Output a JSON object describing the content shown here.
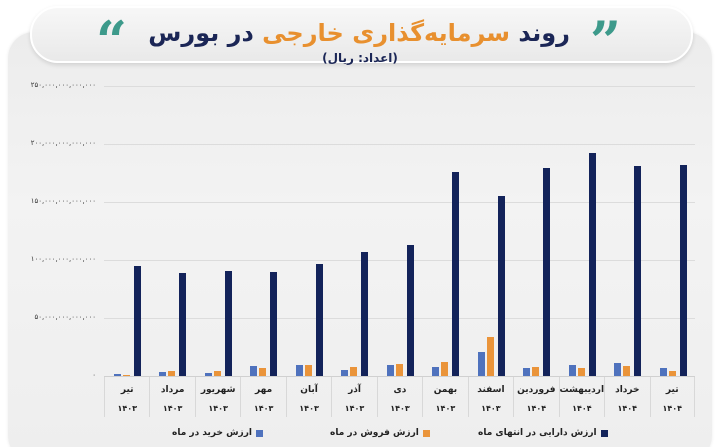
{
  "header": {
    "title_prefix": "روند",
    "title_accent": "سرمایه‌گذاری خارجی",
    "title_suffix": "در بورس",
    "subtitle": "(اعداد: ریال)",
    "quote_left": "“",
    "quote_right": "”",
    "colors": {
      "navy": "#1b2656",
      "accent": "#e8902f",
      "quote": "#3d9a8b"
    }
  },
  "axis": {
    "y_ticks": [
      {
        "label": "۲۵۰,۰۰۰,۰۰۰,۰۰۰,۰۰۰",
        "value": 250000000000000
      },
      {
        "label": "۲۰۰,۰۰۰,۰۰۰,۰۰۰,۰۰۰",
        "value": 200000000000000
      },
      {
        "label": "۱۵۰,۰۰۰,۰۰۰,۰۰۰,۰۰۰",
        "value": 150000000000000
      },
      {
        "label": "۱۰۰,۰۰۰,۰۰۰,۰۰۰,۰۰۰",
        "value": 100000000000000
      },
      {
        "label": "۵۰,۰۰۰,۰۰۰,۰۰۰,۰۰۰",
        "value": 50000000000000
      },
      {
        "label": "۰",
        "value": 0
      }
    ]
  },
  "categories": [
    {
      "month": "تیر",
      "year": "۱۴۰۳"
    },
    {
      "month": "مرداد",
      "year": "۱۴۰۳"
    },
    {
      "month": "شهریور",
      "year": "۱۴۰۳"
    },
    {
      "month": "مهر",
      "year": "۱۴۰۳"
    },
    {
      "month": "آبان",
      "year": "۱۴۰۳"
    },
    {
      "month": "آذر",
      "year": "۱۴۰۳"
    },
    {
      "month": "دی",
      "year": "۱۴۰۳"
    },
    {
      "month": "بهمن",
      "year": "۱۴۰۳"
    },
    {
      "month": "اسفند",
      "year": "۱۴۰۳"
    },
    {
      "month": "فروردین",
      "year": "۱۴۰۴"
    },
    {
      "month": "اردیبهشت",
      "year": "۱۴۰۴"
    },
    {
      "month": "خرداد",
      "year": "۱۴۰۴"
    },
    {
      "month": "تیر",
      "year": "۱۴۰۴"
    }
  ],
  "legend": {
    "buy": {
      "label": "ارزش خرید در ماه",
      "color": "#4f72bd"
    },
    "sell": {
      "label": "ارزش فروش در ماه",
      "color": "#ea943a"
    },
    "asset": {
      "label": "ارزش دارایی در انتهای ماه",
      "color": "#13235a"
    }
  },
  "chart_data": {
    "type": "bar",
    "title": "روند سرمایه‌گذاری خارجی در بورس",
    "subtitle": "(اعداد: ریال)",
    "xlabel": "",
    "ylabel": "ریال",
    "ylim": [
      0,
      250000000000000
    ],
    "grid": true,
    "legend_position": "bottom",
    "categories": [
      "تیر ۱۴۰۳",
      "مرداد ۱۴۰۳",
      "شهریور ۱۴۰۳",
      "مهر ۱۴۰۳",
      "آبان ۱۴۰۳",
      "آذر ۱۴۰۳",
      "دی ۱۴۰۳",
      "بهمن ۱۴۰۳",
      "اسفند ۱۴۰۳",
      "فروردین ۱۴۰۴",
      "اردیبهشت ۱۴۰۴",
      "خرداد ۱۴۰۴",
      "تیر ۱۴۰۴"
    ],
    "series": [
      {
        "name": "ارزش خرید در ماه",
        "color": "#4f72bd",
        "values": [
          1700000000000,
          3500000000000,
          2600000000000,
          8600000000000,
          9500000000000,
          5000000000000,
          9500000000000,
          8000000000000,
          20700000000000,
          6600000000000,
          9500000000000,
          11200000000000,
          6600000000000
        ]
      },
      {
        "name": "ارزش فروش در ماه",
        "color": "#ea943a",
        "values": [
          1000000000000,
          4000000000000,
          4300000000000,
          6900000000000,
          9500000000000,
          7800000000000,
          10600000000000,
          12000000000000,
          34000000000000,
          8000000000000,
          6900000000000,
          8600000000000,
          4600000000000
        ]
      },
      {
        "name": "ارزش دارایی در انتهای ماه",
        "color": "#13235a",
        "values": [
          95000000000000,
          89000000000000,
          90500000000000,
          90000000000000,
          96500000000000,
          107000000000000,
          113000000000000,
          176000000000000,
          155000000000000,
          179000000000000,
          192000000000000,
          181000000000000,
          182000000000000
        ]
      }
    ]
  }
}
